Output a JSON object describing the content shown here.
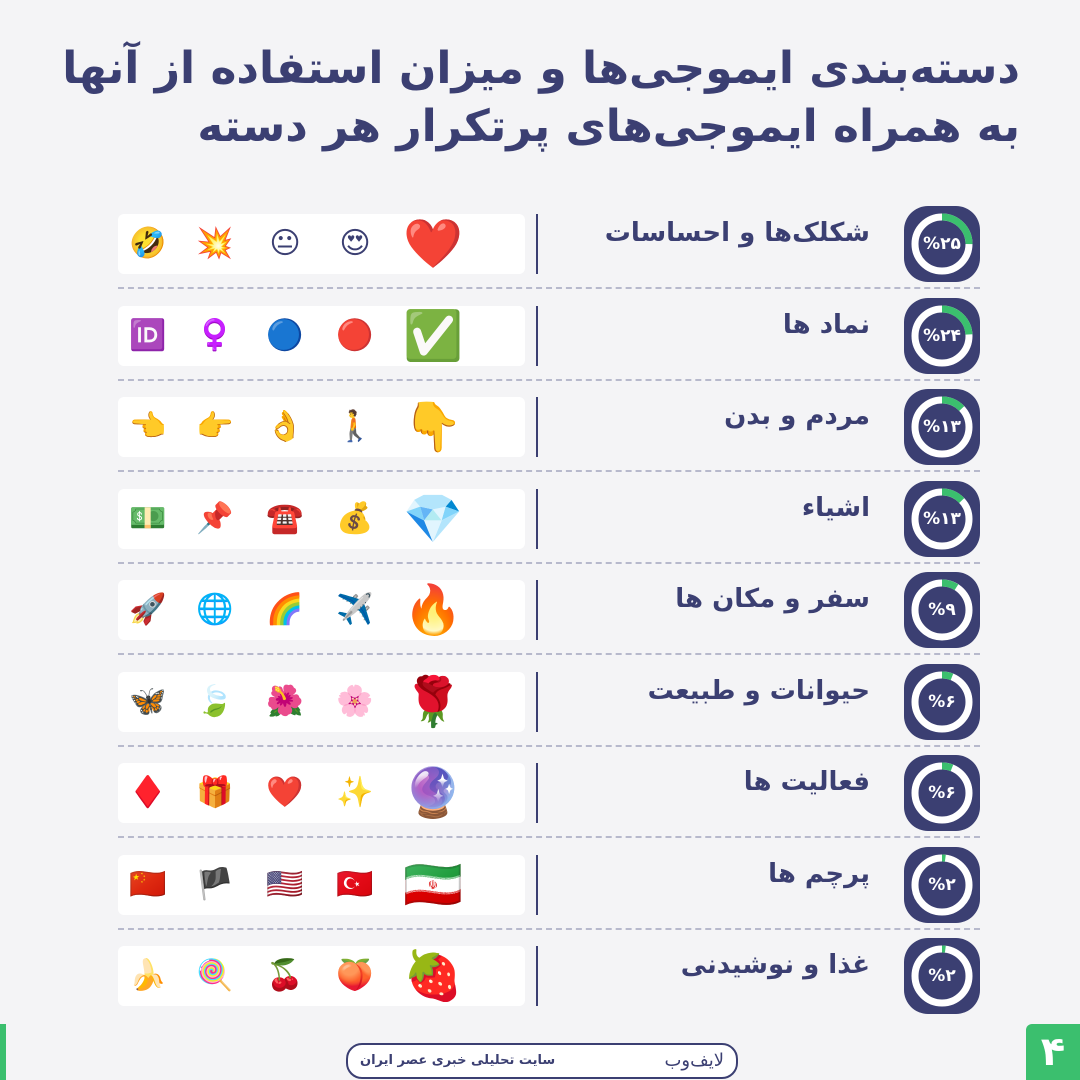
{
  "title": {
    "line1": "دسته‌بندی ایموجی‌ها و میزان استفاده از آنها",
    "line2": "به همراه ایموجی‌های پرتکرار هر دسته"
  },
  "colors": {
    "navy": "#3b3f72",
    "green": "#3bbf6e",
    "ring": "#ffffff"
  },
  "chart_data": {
    "type": "table",
    "categories": [
      "شکلک‌ها و احساسات",
      "نماد ها",
      "مردم و بدن",
      "اشیاء",
      "سفر و مکان ها",
      "حیوانات و طبیعت",
      "فعالیت ها",
      "پرچم ها",
      "غذا و نوشیدنی"
    ],
    "values": [
      25,
      24,
      13,
      13,
      9,
      6,
      6,
      2,
      2
    ],
    "unit": "%"
  },
  "rows": [
    {
      "label": "شکلک‌ها و احساسات",
      "pct": "%۲۵",
      "value": 25,
      "emojis": [
        "❤️",
        "😍",
        "😐",
        "💥",
        "🤣"
      ]
    },
    {
      "label": "نماد ها",
      "pct": "%۲۴",
      "value": 24,
      "emojis": [
        "✅",
        "🔴",
        "🔵",
        "♀️",
        "🆔"
      ]
    },
    {
      "label": "مردم و بدن",
      "pct": "%۱۳",
      "value": 13,
      "emojis": [
        "👇",
        "🚶",
        "👌",
        "👉",
        "👈"
      ]
    },
    {
      "label": "اشیاء",
      "pct": "%۱۳",
      "value": 13,
      "emojis": [
        "💎",
        "💰",
        "☎️",
        "📌",
        "💵"
      ]
    },
    {
      "label": "سفر و مکان ها",
      "pct": "%۹",
      "value": 9,
      "emojis": [
        "🔥",
        "✈️",
        "🌈",
        "🌐",
        "🚀"
      ]
    },
    {
      "label": "حیوانات و طبیعت",
      "pct": "%۶",
      "value": 6,
      "emojis": [
        "🌹",
        "🌸",
        "🌺",
        "🍃",
        "🦋"
      ]
    },
    {
      "label": "فعالیت ها",
      "pct": "%۶",
      "value": 6,
      "emojis": [
        "🔮",
        "✨",
        "❤️",
        "🎁",
        "♦️"
      ]
    },
    {
      "label": "پرچم ها",
      "pct": "%۲",
      "value": 2,
      "emojis": [
        "🇮🇷",
        "🇹🇷",
        "🇺🇸",
        "🏴",
        "🇨🇳"
      ]
    },
    {
      "label": "غذا و نوشیدنی",
      "pct": "%۲",
      "value": 2,
      "emojis": [
        "🍓",
        "🍑",
        "🍒",
        "🍭",
        "🍌"
      ]
    }
  ],
  "footer": {
    "source": "سایت تحلیلی خبری عصر ایران",
    "brand": "لایف‌وب"
  },
  "page_number": "۴"
}
